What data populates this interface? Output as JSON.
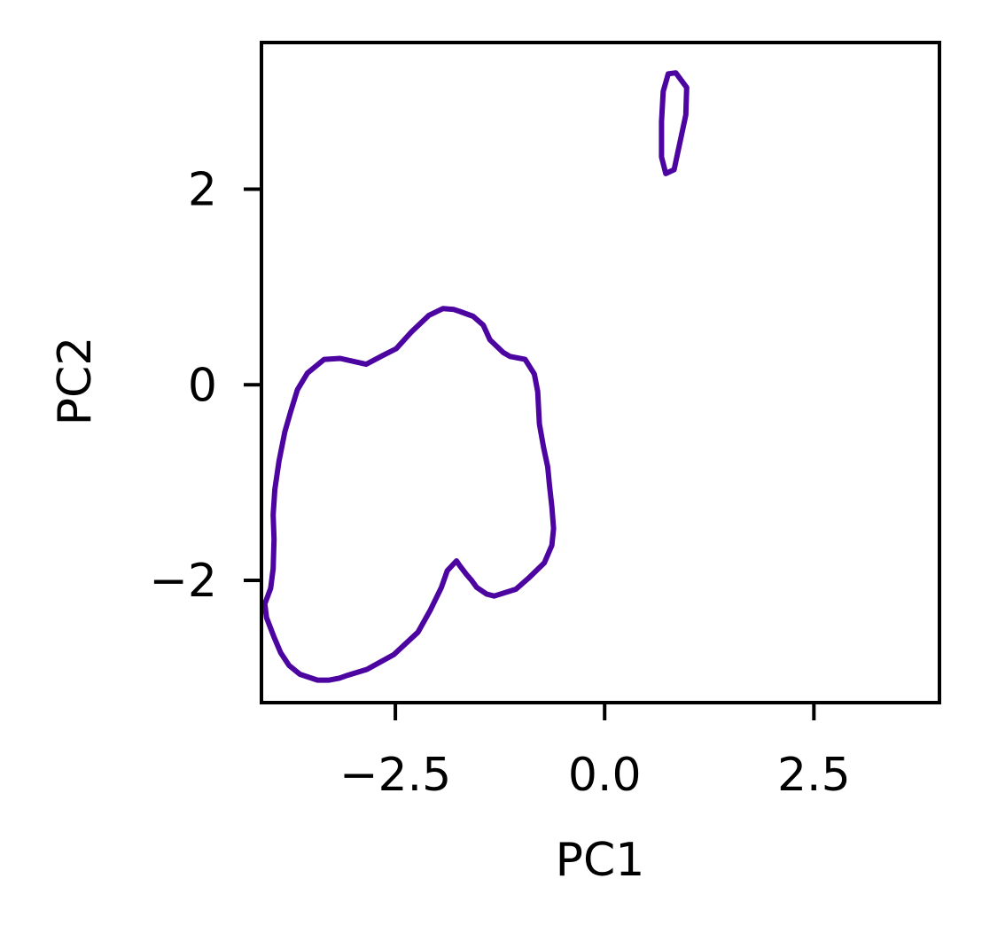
{
  "chart_data": {
    "type": "contour",
    "title": "",
    "xlabel": "PC1",
    "ylabel": "PC2",
    "xlim": [
      -4.1,
      4.0
    ],
    "ylim": [
      -3.25,
      3.5
    ],
    "x_ticks": [
      -2.5,
      0.0,
      2.5
    ],
    "x_tick_labels": [
      "−2.5",
      "0.0",
      "2.5"
    ],
    "y_ticks": [
      -2,
      0,
      2
    ],
    "y_tick_labels": [
      "−2",
      "0",
      "2"
    ],
    "grid": false,
    "legend": "none",
    "colormap": "plasma",
    "level_colors": [
      "#4c05a0",
      "#7d03a8",
      "#a8208f",
      "#cb4678",
      "#e56b5d",
      "#f89441",
      "#fdc328"
    ],
    "contours": [
      {
        "level": 1,
        "color": "#4c05a0",
        "points": [
          [
            0.76,
            3.18
          ],
          [
            0.85,
            3.19
          ],
          [
            0.98,
            3.04
          ],
          [
            0.97,
            2.76
          ],
          [
            0.83,
            2.2
          ],
          [
            0.73,
            2.16
          ],
          [
            0.68,
            2.33
          ],
          [
            0.68,
            2.69
          ],
          [
            0.7,
            3.0
          ]
        ]
      },
      {
        "level": 1,
        "color": "#4c05a0",
        "points": [
          [
            -3.17,
            -3.0
          ],
          [
            -3.07,
            -2.97
          ],
          [
            -2.84,
            -2.91
          ],
          [
            -2.52,
            -2.76
          ],
          [
            -2.23,
            -2.53
          ],
          [
            -2.08,
            -2.3
          ],
          [
            -1.95,
            -2.07
          ],
          [
            -1.88,
            -1.9
          ],
          [
            -1.77,
            -1.8
          ],
          [
            -1.73,
            -1.85
          ],
          [
            -1.65,
            -1.94
          ],
          [
            -1.59,
            -2.0
          ],
          [
            -1.53,
            -2.07
          ],
          [
            -1.41,
            -2.14
          ],
          [
            -1.32,
            -2.16
          ],
          [
            -1.06,
            -2.09
          ],
          [
            -0.9,
            -1.97
          ],
          [
            -0.72,
            -1.82
          ],
          [
            -0.63,
            -1.64
          ],
          [
            -0.61,
            -1.47
          ],
          [
            -0.63,
            -1.25
          ],
          [
            -0.66,
            -1.02
          ],
          [
            -0.68,
            -0.84
          ],
          [
            -0.73,
            -0.64
          ],
          [
            -0.78,
            -0.4
          ],
          [
            -0.8,
            -0.07
          ],
          [
            -0.84,
            0.11
          ],
          [
            -0.95,
            0.26
          ],
          [
            -1.13,
            0.29
          ],
          [
            -1.21,
            0.33
          ],
          [
            -1.37,
            0.46
          ],
          [
            -1.45,
            0.61
          ],
          [
            -1.57,
            0.7
          ],
          [
            -1.73,
            0.75
          ],
          [
            -1.8,
            0.77
          ],
          [
            -1.93,
            0.78
          ],
          [
            -2.1,
            0.71
          ],
          [
            -2.31,
            0.54
          ],
          [
            -2.49,
            0.37
          ],
          [
            -2.65,
            0.3
          ],
          [
            -2.85,
            0.21
          ],
          [
            -3.16,
            0.27
          ],
          [
            -3.35,
            0.26
          ],
          [
            -3.55,
            0.12
          ],
          [
            -3.67,
            -0.05
          ],
          [
            -3.75,
            -0.27
          ],
          [
            -3.82,
            -0.48
          ],
          [
            -3.89,
            -0.78
          ],
          [
            -3.94,
            -1.07
          ],
          [
            -3.96,
            -1.33
          ],
          [
            -3.95,
            -1.58
          ],
          [
            -3.96,
            -1.88
          ],
          [
            -3.99,
            -2.08
          ],
          [
            -4.06,
            -2.24
          ],
          [
            -4.04,
            -2.38
          ],
          [
            -3.95,
            -2.58
          ],
          [
            -3.87,
            -2.74
          ],
          [
            -3.77,
            -2.87
          ],
          [
            -3.64,
            -2.96
          ],
          [
            -3.43,
            -3.02
          ],
          [
            -3.29,
            -3.02
          ]
        ]
      }
    ]
  }
}
